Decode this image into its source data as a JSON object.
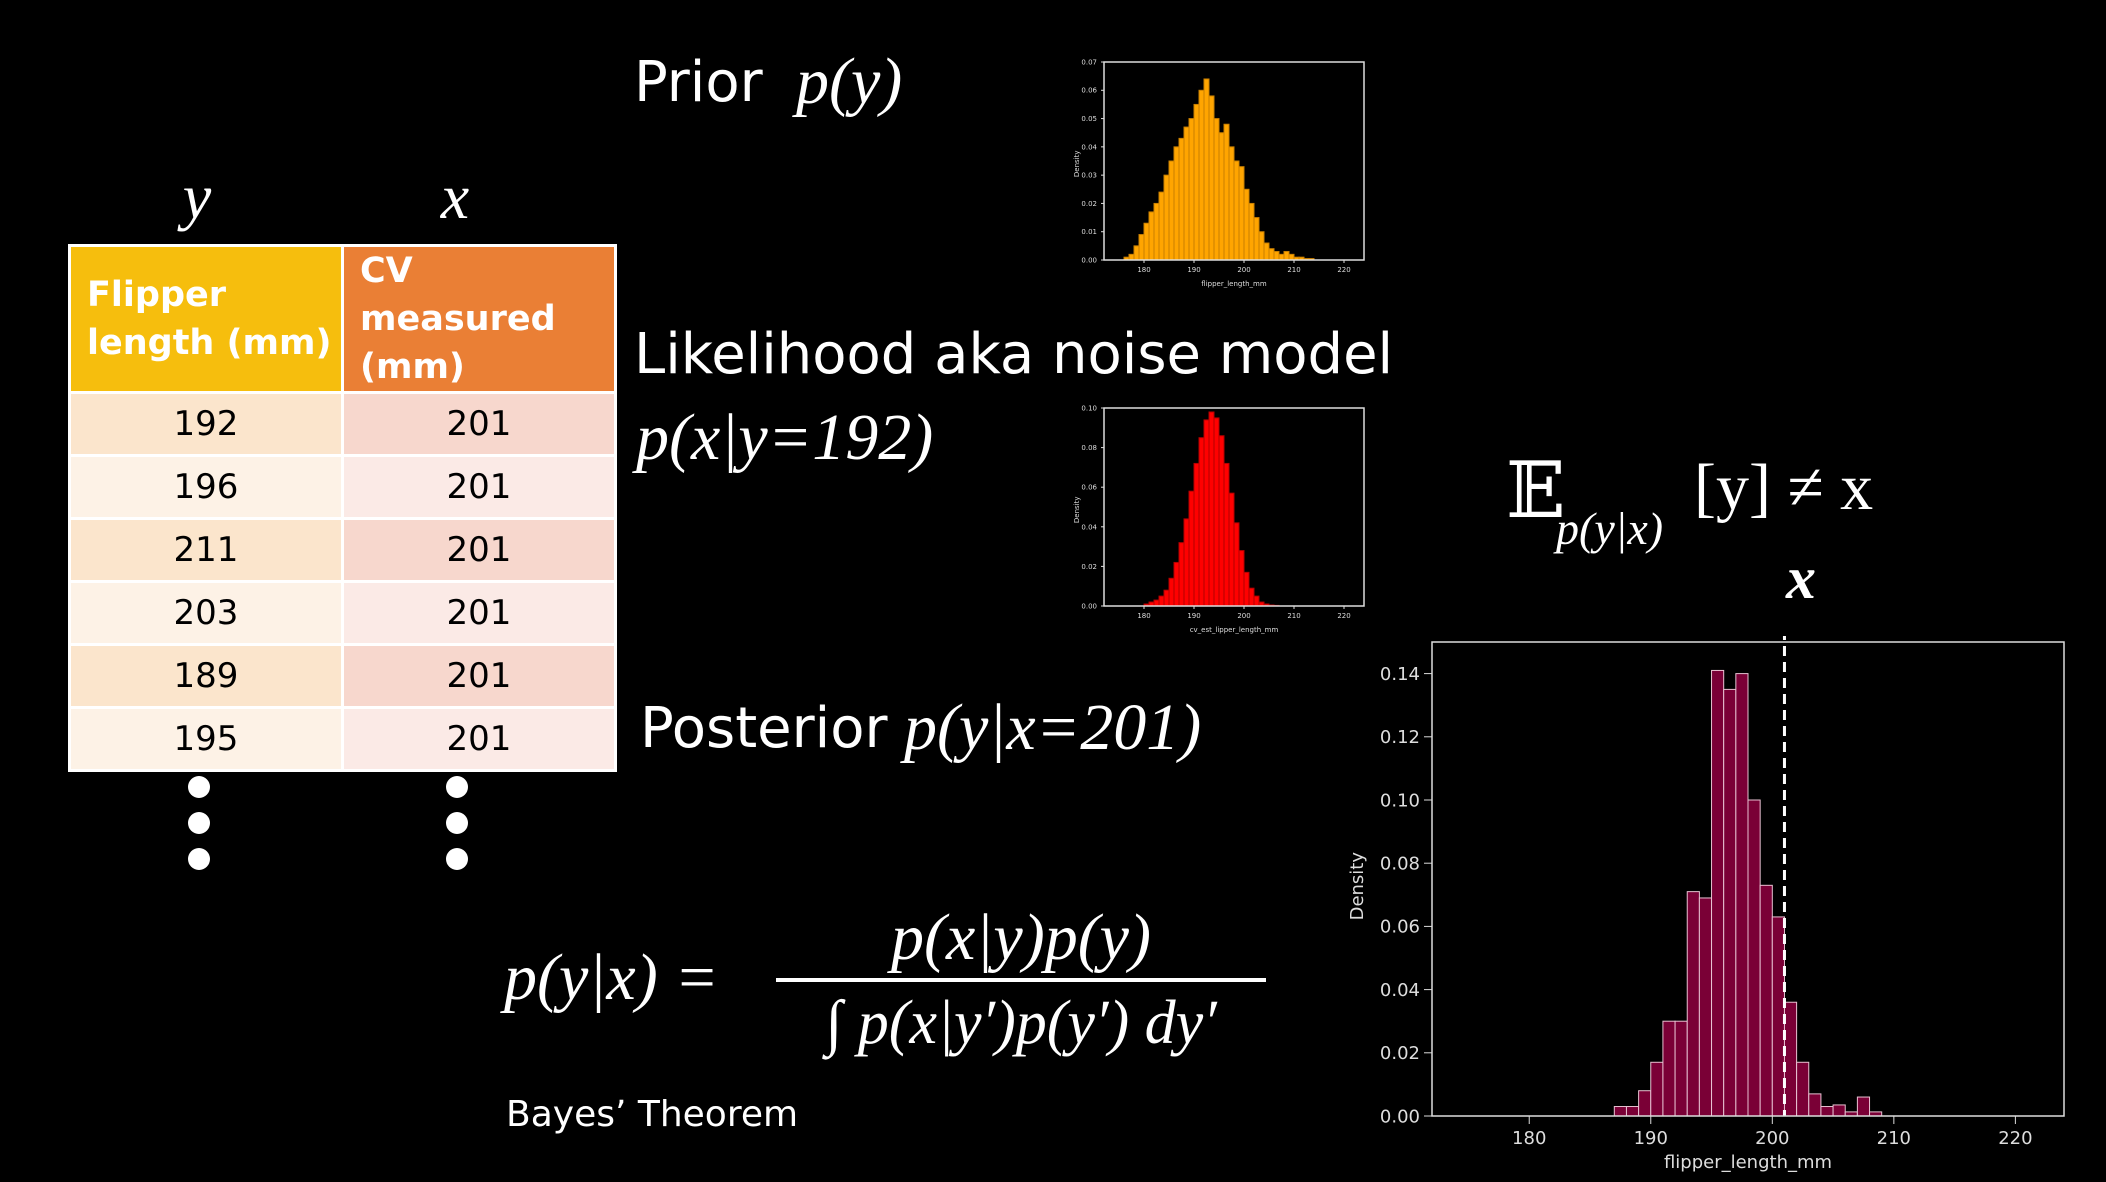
{
  "table": {
    "var_y": "y",
    "var_x": "x",
    "headers": [
      "Flipper length (mm)",
      "CV measured (mm)"
    ],
    "rows": [
      [
        "192",
        "201"
      ],
      [
        "196",
        "201"
      ],
      [
        "211",
        "201"
      ],
      [
        "203",
        "201"
      ],
      [
        "189",
        "201"
      ],
      [
        "195",
        "201"
      ]
    ]
  },
  "labels": {
    "prior": "Prior",
    "prior_expr": "p(y)",
    "likelihood": "Likelihood aka noise model",
    "likelihood_expr": "p(x|y=192)",
    "posterior": "Posterior",
    "posterior_expr": "p(y|x=201)",
    "bayes_caption": "Bayes’ Theorem",
    "expectation_E": "𝔼",
    "expectation_sub": "p(y|x)",
    "expectation_rest": "[y] ≠ x",
    "x_marker": "x"
  },
  "formula": {
    "lhs": "p(y|x) =",
    "numerator": "p(x|y)p(y)",
    "denominator": "∫ p(x|y′)p(y′) dy′"
  },
  "colors": {
    "prior": "#ffa500",
    "likelihood": "#ff0000",
    "posterior": "#7a0036",
    "header_flipper": "#f6be0d",
    "header_cv": "#ea7f35"
  },
  "chart_data": [
    {
      "type": "bar",
      "name": "prior",
      "xlabel": "flipper_length_mm",
      "ylabel": "Density",
      "xlim": [
        172,
        224
      ],
      "ylim": [
        0,
        0.07
      ],
      "x_ticks": [
        "180",
        "190",
        "200",
        "210",
        "220"
      ],
      "y_ticks": [
        "0.00",
        "0.01",
        "0.02",
        "0.03",
        "0.04",
        "0.05",
        "0.06",
        "0.07"
      ],
      "bin_start": 176,
      "bin_width": 1,
      "values": [
        0.001,
        0.002,
        0.005,
        0.009,
        0.013,
        0.017,
        0.02,
        0.024,
        0.03,
        0.035,
        0.04,
        0.043,
        0.047,
        0.05,
        0.055,
        0.06,
        0.064,
        0.058,
        0.05,
        0.045,
        0.048,
        0.04,
        0.035,
        0.033,
        0.025,
        0.02,
        0.015,
        0.01,
        0.006,
        0.004,
        0.003,
        0.002,
        0.003,
        0.002,
        0.001,
        0.001,
        0.0005,
        0.0005
      ]
    },
    {
      "type": "bar",
      "name": "likelihood",
      "xlabel": "cv_est_lipper_length_mm",
      "ylabel": "Density",
      "xlim": [
        172,
        224
      ],
      "ylim": [
        0,
        0.1
      ],
      "x_ticks": [
        "180",
        "190",
        "200",
        "210",
        "220"
      ],
      "y_ticks": [
        "0.00",
        "0.02",
        "0.04",
        "0.06",
        "0.08",
        "0.10"
      ],
      "bin_start": 180,
      "bin_width": 1,
      "values": [
        0.001,
        0.002,
        0.003,
        0.005,
        0.008,
        0.014,
        0.022,
        0.032,
        0.044,
        0.058,
        0.072,
        0.085,
        0.094,
        0.098,
        0.095,
        0.086,
        0.072,
        0.057,
        0.042,
        0.028,
        0.017,
        0.009,
        0.005,
        0.002,
        0.001,
        0.0005,
        0.0003
      ]
    },
    {
      "type": "bar",
      "name": "posterior",
      "xlabel": "flipper_length_mm",
      "ylabel": "Density",
      "xlim": [
        172,
        224
      ],
      "ylim": [
        0,
        0.15
      ],
      "x_ticks": [
        "180",
        "190",
        "200",
        "210",
        "220"
      ],
      "y_ticks": [
        "0.00",
        "0.02",
        "0.04",
        "0.06",
        "0.08",
        "0.10",
        "0.12",
        "0.14"
      ],
      "bin_start": 187,
      "bin_width": 1,
      "values": [
        0.003,
        0.003,
        0.008,
        0.017,
        0.03,
        0.03,
        0.071,
        0.069,
        0.141,
        0.135,
        0.14,
        0.1,
        0.073,
        0.063,
        0.036,
        0.017,
        0.007,
        0.003,
        0.0035,
        0.0013,
        0.006,
        0.0013
      ],
      "marker_x": 201
    }
  ]
}
